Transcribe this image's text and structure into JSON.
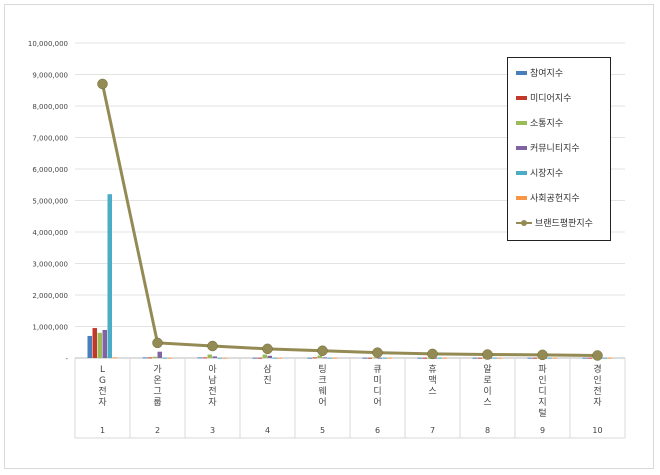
{
  "chart_data": {
    "type": "bar",
    "title": "",
    "xlabel": "",
    "ylabel": "",
    "ylim": [
      0,
      10000000
    ],
    "y_ticks": [
      "-",
      "1,000,000",
      "2,000,000",
      "3,000,000",
      "4,000,000",
      "5,000,000",
      "6,000,000",
      "7,000,000",
      "8,000,000",
      "9,000,000",
      "10,000,000"
    ],
    "categories": [
      "LG전자",
      "가온그룹",
      "아남전자",
      "삼진",
      "팅크웨어",
      "큐미디어",
      "휴맥스",
      "알로이스",
      "파인디지털",
      "경인전자"
    ],
    "ranks": [
      "1",
      "2",
      "3",
      "4",
      "5",
      "6",
      "7",
      "8",
      "9",
      "10"
    ],
    "legend_placement": "top-right",
    "series": [
      {
        "name": "참여지수",
        "kind": "bar",
        "color": "#4a7ebb",
        "values": [
          700000,
          20000,
          20000,
          10000,
          10000,
          10000,
          10000,
          10000,
          10000,
          10000
        ]
      },
      {
        "name": "미디어지수",
        "kind": "bar",
        "color": "#c0392b",
        "values": [
          950000,
          20000,
          20000,
          10000,
          20000,
          10000,
          10000,
          10000,
          10000,
          10000
        ]
      },
      {
        "name": "소통지수",
        "kind": "bar",
        "color": "#9bbb59",
        "values": [
          800000,
          40000,
          110000,
          110000,
          80000,
          20000,
          10000,
          10000,
          10000,
          10000
        ]
      },
      {
        "name": "커뮤니티지수",
        "kind": "bar",
        "color": "#8064a2",
        "values": [
          890000,
          200000,
          50000,
          70000,
          20000,
          10000,
          10000,
          10000,
          10000,
          10000
        ]
      },
      {
        "name": "시장지수",
        "kind": "bar",
        "color": "#4bacc6",
        "values": [
          5200000,
          10000,
          10000,
          10000,
          10000,
          10000,
          10000,
          10000,
          10000,
          10000
        ]
      },
      {
        "name": "사회공헌지수",
        "kind": "bar",
        "color": "#f79646",
        "values": [
          20000,
          10000,
          10000,
          10000,
          10000,
          10000,
          10000,
          10000,
          10000,
          10000
        ]
      },
      {
        "name": "브랜드평판지수",
        "kind": "line",
        "color": "#948a54",
        "values": [
          8700000,
          480000,
          380000,
          290000,
          230000,
          170000,
          130000,
          110000,
          100000,
          80000
        ]
      }
    ]
  }
}
